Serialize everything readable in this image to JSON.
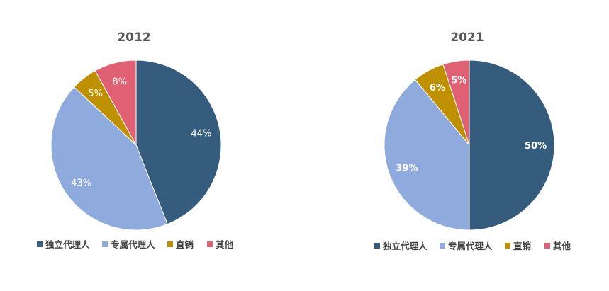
{
  "chart_data": [
    {
      "type": "pie",
      "title": "2012",
      "categories": [
        "独立代理人",
        "专属代理人",
        "直销",
        "其他"
      ],
      "values": [
        44,
        43,
        5,
        8
      ],
      "labels": [
        "44%",
        "43%",
        "5%",
        "8%"
      ],
      "colors": [
        "#355C7D",
        "#8FAADC",
        "#BF9000",
        "#E06074"
      ],
      "legend_position": "bottom",
      "start": "top-clockwise"
    },
    {
      "type": "pie",
      "title": "2021",
      "categories": [
        "独立代理人",
        "专属代理人",
        "直销",
        "其他"
      ],
      "values": [
        50,
        39,
        6,
        5
      ],
      "labels": [
        "50%",
        "39%",
        "6%",
        "5%"
      ],
      "colors": [
        "#355C7D",
        "#8FAADC",
        "#BF9000",
        "#E06074"
      ],
      "legend_position": "bottom",
      "start": "top-clockwise"
    }
  ]
}
